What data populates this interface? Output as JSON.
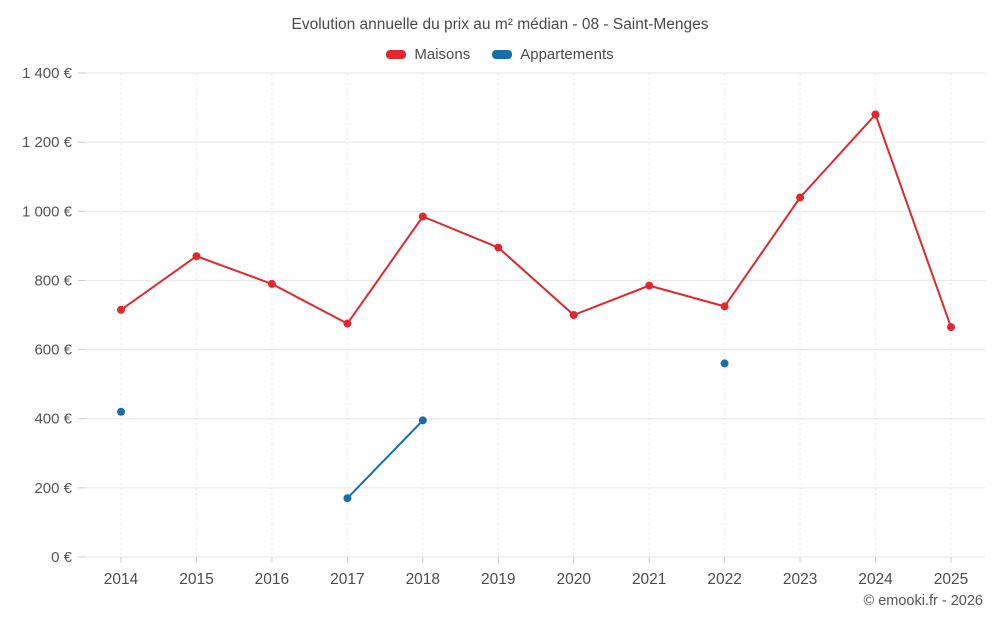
{
  "header": {
    "title": "Evolution annuelle du prix au m² médian - 08 - Saint-Menges"
  },
  "legend": [
    {
      "label": "Maisons",
      "color": "#e0282e"
    },
    {
      "label": "Appartements",
      "color": "#1670a8"
    }
  ],
  "footer": {
    "credit": "© emooki.fr - 2026"
  },
  "chart_data": {
    "type": "line",
    "title": "Evolution annuelle du prix au m² médian - 08 - Saint-Menges",
    "categories": [
      2014,
      2015,
      2016,
      2017,
      2018,
      2019,
      2020,
      2021,
      2022,
      2023,
      2024,
      2025
    ],
    "series": [
      {
        "name": "Maisons",
        "color": "#e0282e",
        "values": [
          715,
          870,
          790,
          675,
          985,
          895,
          700,
          785,
          725,
          1040,
          1280,
          665
        ]
      },
      {
        "name": "Appartements",
        "color": "#1670a8",
        "values": [
          420,
          null,
          null,
          170,
          395,
          null,
          null,
          null,
          560,
          null,
          null,
          null
        ]
      }
    ],
    "xlabel": "",
    "ylabel": "",
    "ylim": [
      0,
      1400
    ],
    "ytick_step": 200,
    "ytick_labels": [
      "0 €",
      "200 €",
      "400 €",
      "600 €",
      "800 €",
      "1 000 €",
      "1 200 €",
      "1 400 €"
    ],
    "grid": true,
    "legend_position": "top",
    "marker": "circle"
  }
}
